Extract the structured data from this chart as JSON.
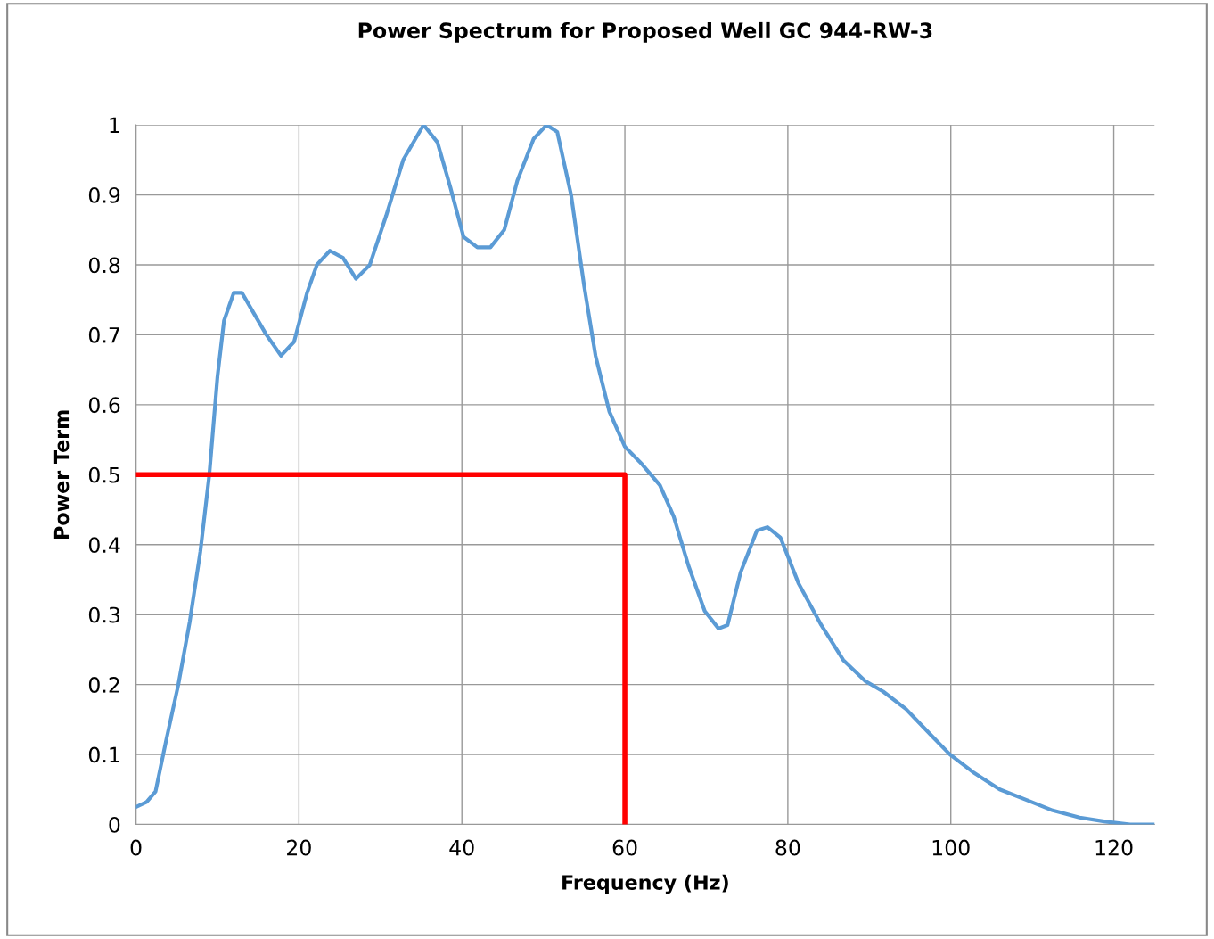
{
  "chart_data": {
    "type": "line",
    "title": "Power Spectrum for Proposed Well GC 944-RW-3",
    "xlabel": "Frequency (Hz)",
    "ylabel": "Power Term",
    "xlim": [
      0,
      125
    ],
    "xticks": [
      0,
      20,
      40,
      60,
      80,
      100,
      120
    ],
    "ylim": [
      0,
      1
    ],
    "yticks": [
      0,
      0.1,
      0.2,
      0.3,
      0.4,
      0.5,
      0.6,
      0.7,
      0.8,
      0.9,
      1
    ],
    "grid": true,
    "legend": false,
    "marker": "none",
    "line_style": "solid",
    "series": [
      {
        "color": "#5b9bd5",
        "x": [
          0,
          1.3,
          2.4,
          3.7,
          5.2,
          6.6,
          7.9,
          9,
          10,
          10.8,
          12,
          13,
          14.5,
          16,
          17.8,
          19.4,
          21,
          22.2,
          23.8,
          25.4,
          27,
          28.7,
          30.7,
          32.8,
          35.3,
          37,
          38.6,
          40.2,
          41.9,
          43.5,
          45.2,
          46.8,
          48.8,
          50.4,
          51.7,
          53.4,
          55,
          56.4,
          58.1,
          60,
          62.1,
          64.3,
          66,
          67.8,
          69.8,
          71.5,
          72.6,
          74.2,
          76.2,
          77.5,
          79.1,
          81.3,
          84.1,
          86.8,
          89.5,
          91.7,
          94.5,
          97.8,
          99.9,
          102.7,
          106,
          109.3,
          112.5,
          115.8,
          119,
          122,
          125
        ],
        "values": [
          0.025,
          0.032,
          0.047,
          0.12,
          0.2,
          0.29,
          0.39,
          0.5,
          0.64,
          0.72,
          0.76,
          0.76,
          0.73,
          0.7,
          0.67,
          0.69,
          0.76,
          0.8,
          0.82,
          0.81,
          0.78,
          0.8,
          0.87,
          0.95,
          1.0,
          0.975,
          0.91,
          0.84,
          0.825,
          0.825,
          0.85,
          0.92,
          0.98,
          1.0,
          0.99,
          0.9,
          0.77,
          0.67,
          0.59,
          0.54,
          0.515,
          0.485,
          0.44,
          0.37,
          0.305,
          0.28,
          0.285,
          0.36,
          0.42,
          0.425,
          0.41,
          0.345,
          0.285,
          0.235,
          0.205,
          0.19,
          0.165,
          0.125,
          0.1,
          0.075,
          0.05,
          0.035,
          0.02,
          0.01,
          0.004,
          0,
          0
        ]
      },
      {
        "color": "#ff0000",
        "x": [
          0,
          60,
          60
        ],
        "values": [
          0.5,
          0.5,
          0
        ]
      }
    ]
  }
}
